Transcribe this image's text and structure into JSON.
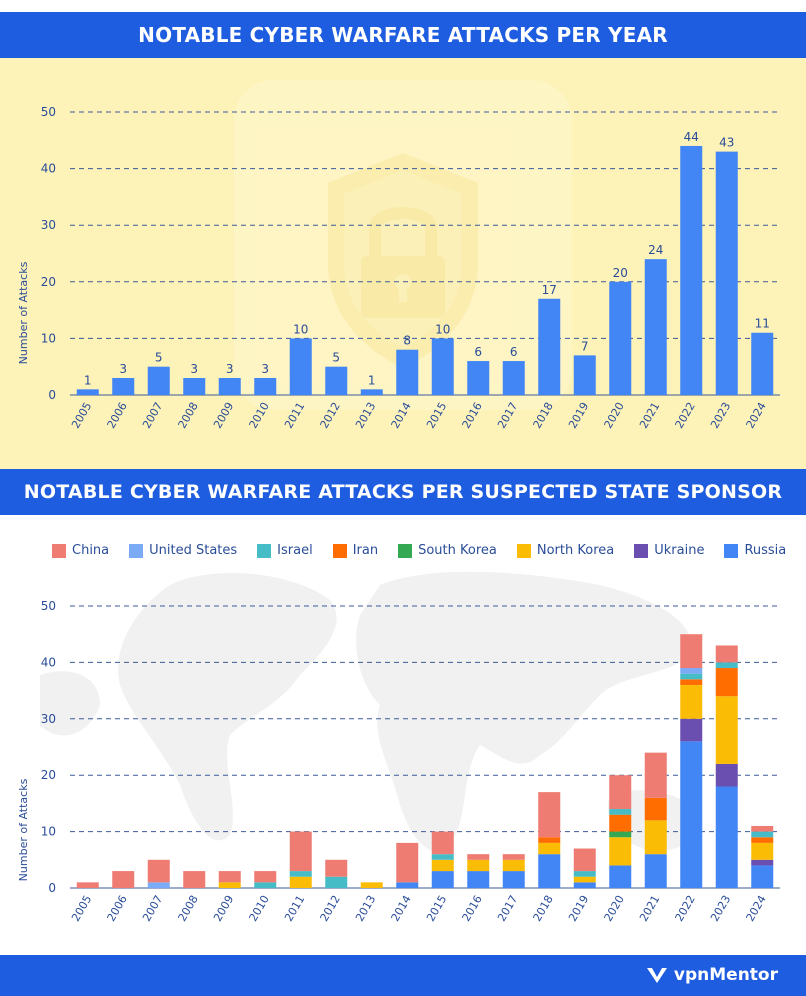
{
  "header": {
    "title_1": "NOTABLE CYBER WARFARE ATTACKS PER YEAR",
    "title_2": "NOTABLE CYBER WARFARE ATTACKS PER SUSPECTED STATE SPONSOR"
  },
  "footer": {
    "brand": "vpnMentor"
  },
  "colors": {
    "bar": "#4285f4",
    "grid": "#3b5a9a",
    "text": "#2a4d99",
    "bg_top": "#fdf2b8",
    "banner": "#1e5ce0"
  },
  "icons": {
    "top_background": "shield-lock-icon",
    "bottom_background": "world-map",
    "brand": "vpnmentor-logo-icon"
  },
  "chart_data": [
    {
      "type": "bar",
      "title": "NOTABLE CYBER WARFARE ATTACKS PER YEAR",
      "ylabel": "Number of Attacks",
      "xlabel": "",
      "ylim": [
        0,
        50
      ],
      "yticks": [
        0,
        10,
        20,
        30,
        40,
        50
      ],
      "grid": true,
      "categories": [
        "2005",
        "2006",
        "2007",
        "2008",
        "2009",
        "2010",
        "2011",
        "2012",
        "2013",
        "2014",
        "2015",
        "2016",
        "2017",
        "2018",
        "2019",
        "2020",
        "2021",
        "2022",
        "2023",
        "2024"
      ],
      "values": [
        1,
        3,
        5,
        3,
        3,
        3,
        10,
        5,
        1,
        8,
        10,
        6,
        6,
        17,
        7,
        20,
        24,
        44,
        43,
        11
      ]
    },
    {
      "type": "bar",
      "stacked": true,
      "title": "NOTABLE CYBER WARFARE ATTACKS PER SUSPECTED STATE SPONSOR",
      "ylabel": "Number of Attacks",
      "xlabel": "",
      "ylim": [
        0,
        50
      ],
      "yticks": [
        0,
        10,
        20,
        30,
        40,
        50
      ],
      "grid": true,
      "legend_position": "top",
      "categories": [
        "2005",
        "2006",
        "2007",
        "2008",
        "2009",
        "2010",
        "2011",
        "2012",
        "2013",
        "2014",
        "2015",
        "2016",
        "2017",
        "2018",
        "2019",
        "2020",
        "2021",
        "2022",
        "2023",
        "2024"
      ],
      "series": [
        {
          "name": "Russia",
          "color": "#4285f4",
          "values": [
            0,
            0,
            0,
            0,
            0,
            0,
            0,
            0,
            0,
            1,
            3,
            3,
            3,
            6,
            1,
            4,
            6,
            26,
            18,
            4
          ]
        },
        {
          "name": "Ukraine",
          "color": "#6a4fb0",
          "values": [
            0,
            0,
            0,
            0,
            0,
            0,
            0,
            0,
            0,
            0,
            0,
            0,
            0,
            0,
            0,
            0,
            0,
            4,
            4,
            1
          ]
        },
        {
          "name": "North Korea",
          "color": "#fbbc05",
          "values": [
            0,
            0,
            0,
            0,
            1,
            0,
            2,
            0,
            1,
            0,
            2,
            2,
            2,
            2,
            1,
            5,
            6,
            6,
            12,
            3
          ]
        },
        {
          "name": "South Korea",
          "color": "#34a853",
          "values": [
            0,
            0,
            0,
            0,
            0,
            0,
            0,
            0,
            0,
            0,
            0,
            0,
            0,
            0,
            0,
            1,
            0,
            0,
            0,
            0
          ]
        },
        {
          "name": "Iran",
          "color": "#ff6d01",
          "values": [
            0,
            0,
            0,
            0,
            0,
            0,
            0,
            0,
            0,
            0,
            0,
            0,
            0,
            1,
            0,
            3,
            4,
            1,
            5,
            1
          ]
        },
        {
          "name": "Israel",
          "color": "#46bdc6",
          "values": [
            0,
            0,
            0,
            0,
            0,
            1,
            1,
            2,
            0,
            0,
            1,
            0,
            0,
            0,
            1,
            1,
            0,
            1,
            1,
            1
          ]
        },
        {
          "name": "United States",
          "color": "#7baaf7",
          "values": [
            0,
            0,
            1,
            0,
            0,
            0,
            0,
            0,
            0,
            0,
            0,
            0,
            0,
            0,
            0,
            0,
            0,
            1,
            0,
            0
          ]
        },
        {
          "name": "China",
          "color": "#ee7c73",
          "values": [
            1,
            3,
            4,
            3,
            2,
            2,
            7,
            3,
            0,
            7,
            4,
            1,
            1,
            8,
            4,
            6,
            8,
            6,
            3,
            1
          ]
        }
      ],
      "legend_order": [
        "China",
        "United States",
        "Israel",
        "Iran",
        "South Korea",
        "North Korea",
        "Ukraine",
        "Russia"
      ]
    }
  ]
}
